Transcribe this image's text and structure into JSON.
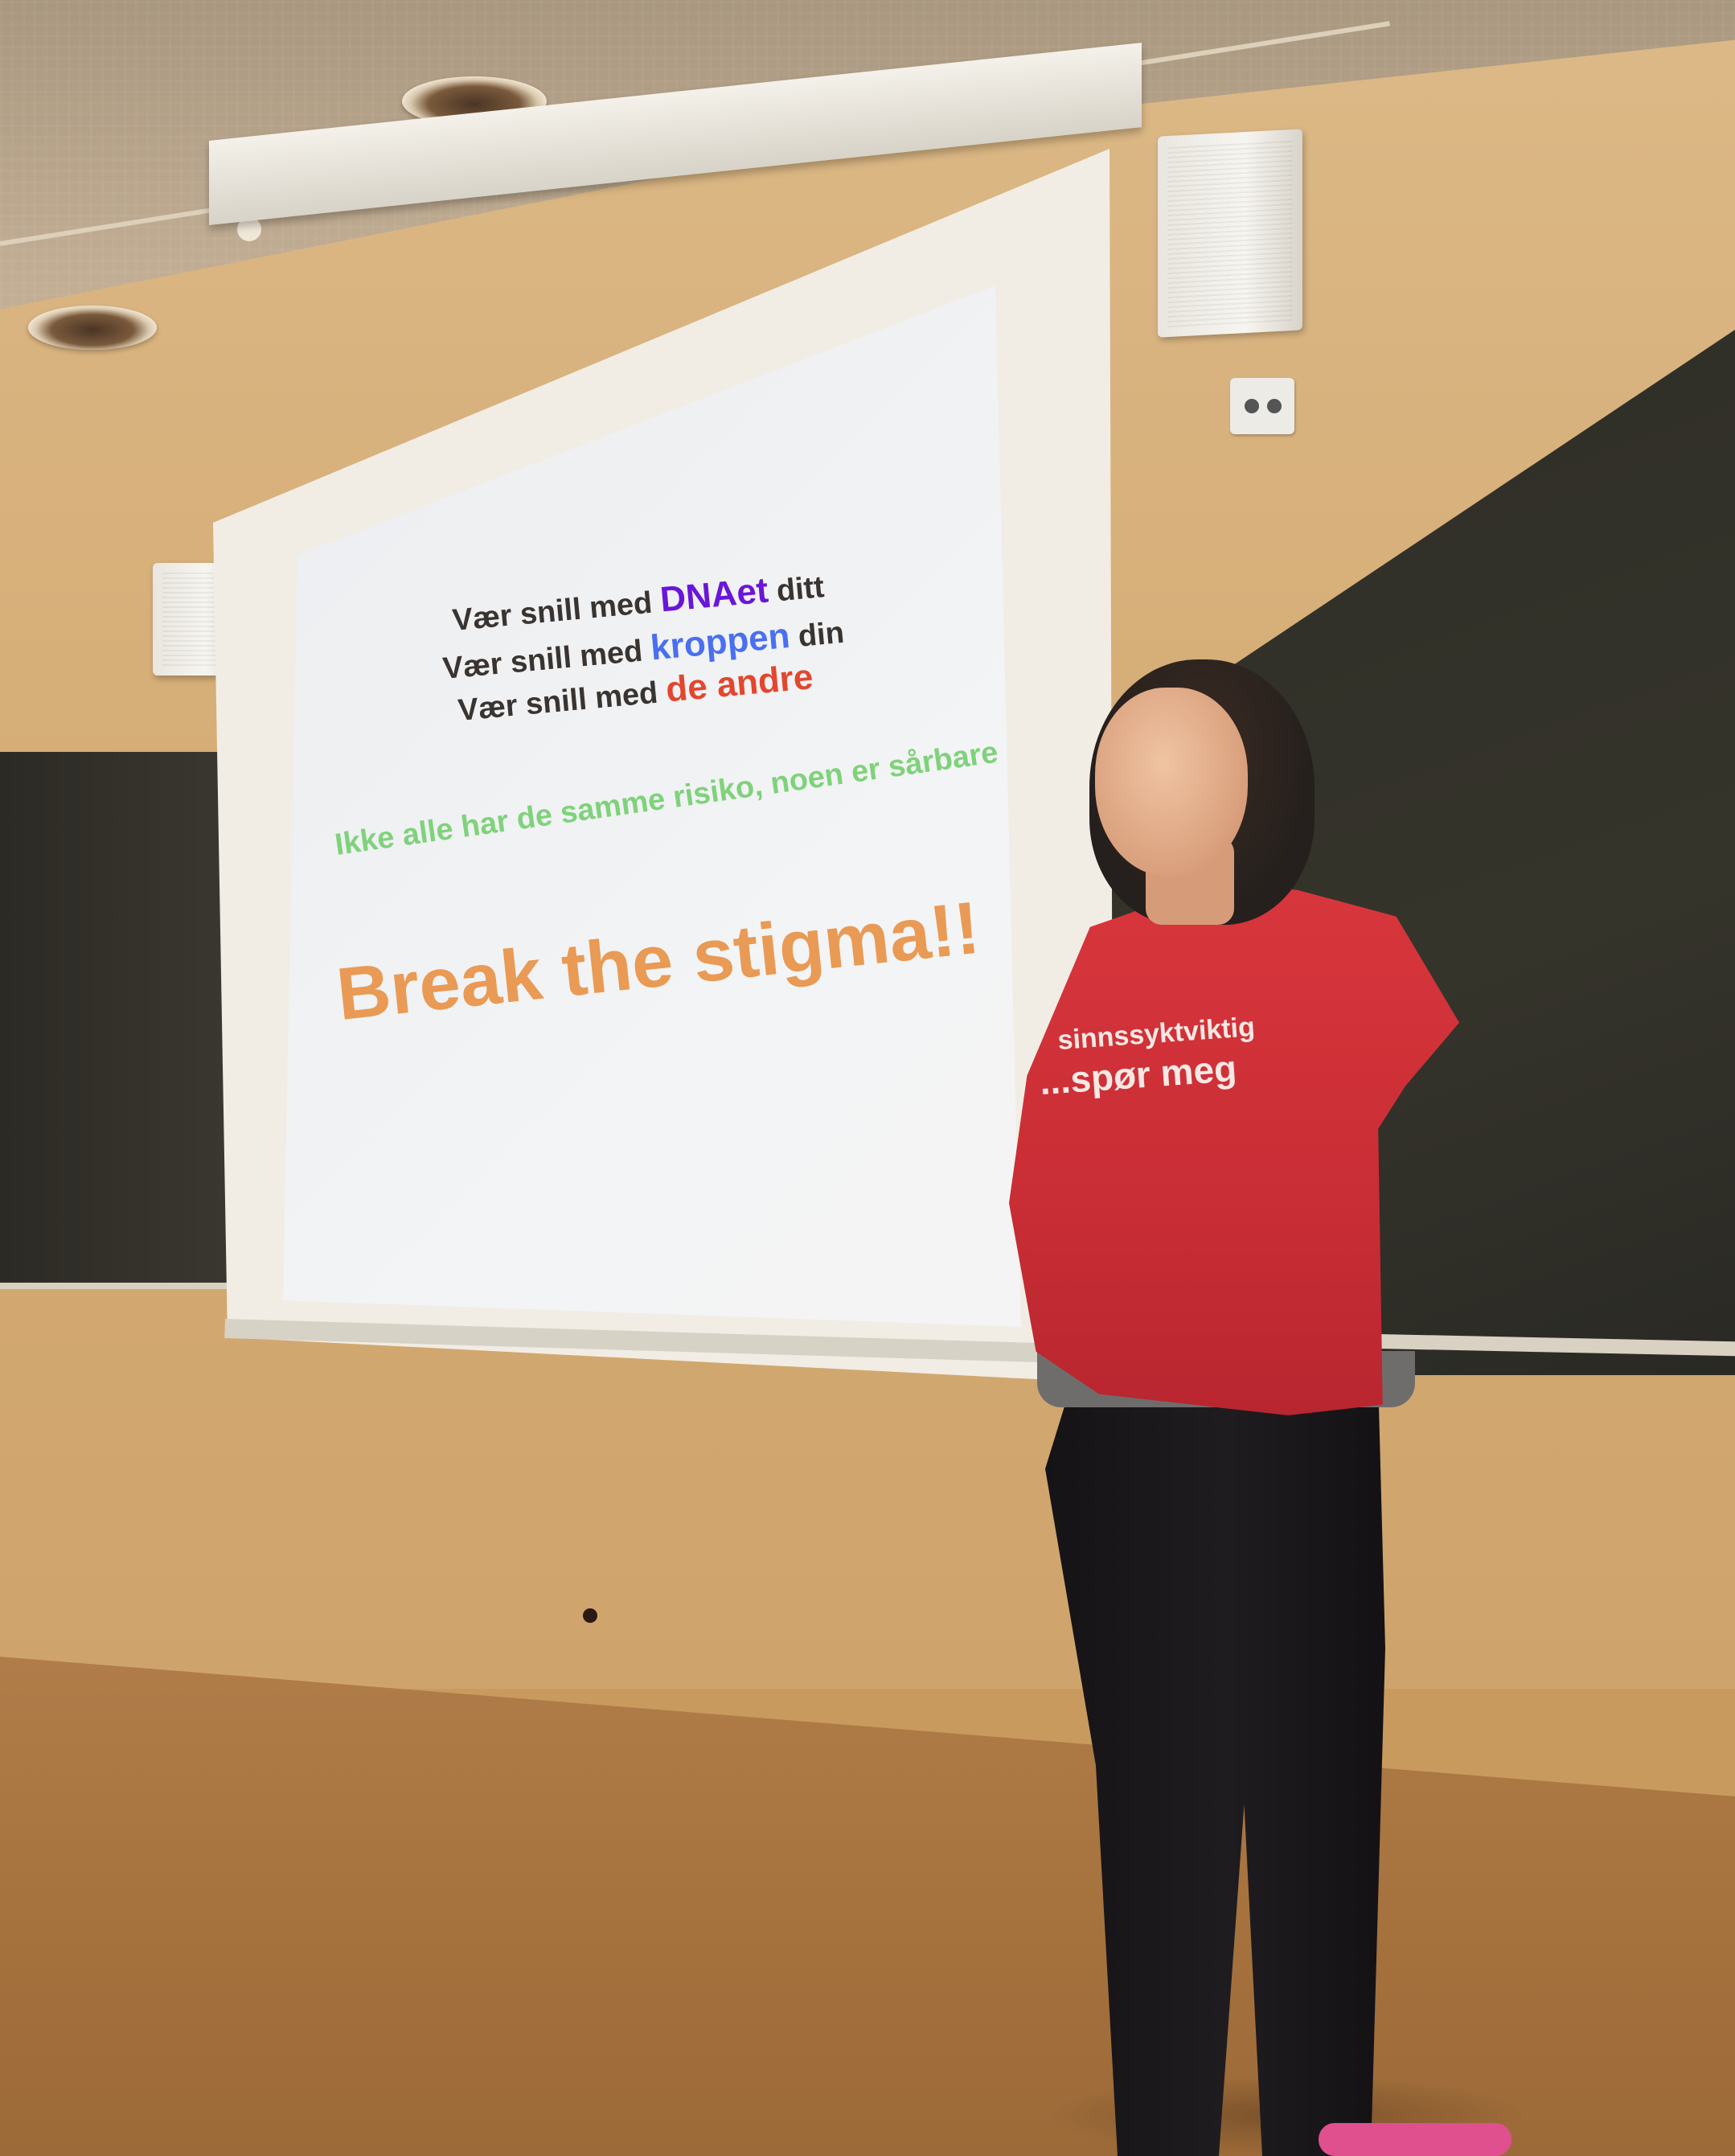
{
  "slide": {
    "line1": {
      "prefix": "Vær snill med ",
      "highlight": "DNAet",
      "suffix": " ditt"
    },
    "line2": {
      "prefix": "Vær snill med ",
      "highlight": "kroppen",
      "suffix": " din"
    },
    "line3": {
      "prefix": "Vær snill med ",
      "highlight": "de andre",
      "suffix": ""
    },
    "line4": "Ikke alle har de samme risiko, noen er sårbare",
    "headline": "Break the stigma!!"
  },
  "shirt": {
    "line1": "sinnssyktviktig",
    "line2": "...spør meg"
  },
  "colors": {
    "highlight_purple": "#6a16d8",
    "highlight_blue": "#4a6ff0",
    "highlight_red": "#e2472e",
    "risk_green": "#7fd27b",
    "headline_orange": "#e99a54",
    "shirt_red": "#d8363c"
  }
}
